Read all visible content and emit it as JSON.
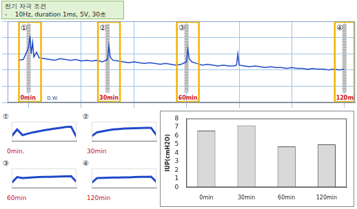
{
  "header": {
    "title": "전기 자극 조건",
    "text": "-    10Hz, duration 1ms, 5V, 30초"
  },
  "chart_data": [
    {
      "type": "line",
      "x": [
        -4,
        -2,
        0,
        0.5,
        1,
        1.5,
        2,
        3,
        4,
        6,
        8,
        10,
        12,
        14,
        16,
        18,
        20,
        22,
        24,
        26,
        28,
        30,
        30.5,
        31,
        32,
        34,
        36,
        38,
        40,
        42,
        44,
        46,
        48,
        50,
        52,
        54,
        56,
        58,
        60,
        60.5,
        61,
        62,
        64,
        66,
        68,
        70,
        72,
        74,
        76,
        78,
        79,
        79.5,
        80,
        82,
        84,
        86,
        88,
        90,
        92,
        94,
        96,
        98,
        100,
        102,
        104,
        106,
        108,
        110,
        112,
        114,
        116,
        118,
        120
      ],
      "values": [
        5.2,
        5.3,
        6.8,
        8.2,
        6.0,
        7.4,
        5.6,
        6.2,
        5.5,
        5.4,
        5.3,
        5.2,
        5.4,
        5.3,
        5.2,
        5.3,
        5.1,
        5.2,
        5.1,
        5.2,
        5.0,
        5.3,
        7.0,
        5.6,
        5.2,
        5.1,
        5.0,
        4.9,
        5.0,
        4.9,
        4.8,
        4.9,
        4.8,
        4.7,
        4.8,
        4.7,
        4.6,
        4.7,
        5.0,
        6.6,
        5.4,
        5.0,
        4.8,
        4.6,
        4.7,
        4.6,
        4.5,
        4.6,
        4.5,
        4.5,
        4.6,
        6.0,
        4.6,
        4.5,
        4.4,
        4.5,
        4.4,
        4.3,
        4.4,
        4.3,
        4.3,
        4.2,
        4.3,
        4.2,
        4.2,
        4.1,
        4.2,
        4.1,
        4.1,
        4.0,
        4.1,
        4.0,
        4.1
      ],
      "color": "#1f49c8",
      "xlim": [
        -8,
        124
      ],
      "xticks": [
        0,
        20,
        40,
        60,
        80,
        100,
        120
      ],
      "ylim": [
        0,
        10
      ],
      "yticks": [
        0,
        2,
        4,
        6,
        8,
        10
      ],
      "grid": true,
      "tick_labels": false,
      "annotations": [
        {
          "x": 0,
          "marker": "①",
          "text": "0min"
        },
        {
          "x": 7,
          "text": "D.W."
        },
        {
          "x": 30,
          "marker": "②",
          "text": "30min"
        },
        {
          "x": 60,
          "marker": "③",
          "text": "60min"
        },
        {
          "x": 120,
          "marker": "④",
          "text": "120min"
        }
      ]
    },
    {
      "type": "line",
      "title": "①",
      "subtitle": "0min.",
      "x": [
        0,
        1,
        2,
        3,
        4,
        5,
        6,
        7,
        8,
        9,
        10,
        11,
        12
      ],
      "values": [
        2.5,
        6,
        3,
        3.8,
        4.5,
        5,
        5.5,
        6,
        6.4,
        6.8,
        7.2,
        7.4,
        2
      ],
      "color": "#1f49c8",
      "xlim": [
        0,
        12
      ],
      "ylim": [
        0,
        10
      ],
      "grid": false,
      "tick_labels": false
    },
    {
      "type": "line",
      "title": "②",
      "subtitle": "30min",
      "x": [
        0,
        1,
        2,
        3,
        4,
        5,
        6,
        7,
        8,
        9,
        10,
        11,
        12
      ],
      "values": [
        2.5,
        4.5,
        5,
        5.5,
        6,
        6.2,
        6.4,
        6.5,
        6.6,
        6.7,
        6.8,
        6.8,
        3
      ],
      "color": "#1f49c8",
      "xlim": [
        0,
        12
      ],
      "ylim": [
        0,
        10
      ],
      "grid": false,
      "tick_labels": false
    },
    {
      "type": "line",
      "title": "③",
      "subtitle": "60min",
      "x": [
        0,
        1,
        2,
        3,
        4,
        5,
        6,
        7,
        8,
        9,
        10,
        11,
        12
      ],
      "values": [
        2.5,
        5.5,
        5,
        5.2,
        5.4,
        5.5,
        5.6,
        5.6,
        5.7,
        5.8,
        5.9,
        6,
        3
      ],
      "color": "#1f49c8",
      "xlim": [
        0,
        12
      ],
      "ylim": [
        0,
        10
      ],
      "grid": false,
      "tick_labels": false
    },
    {
      "type": "line",
      "title": "④",
      "subtitle": "120min",
      "x": [
        0,
        1,
        2,
        3,
        4,
        5,
        6,
        7,
        8,
        9,
        10,
        11,
        12
      ],
      "values": [
        2.5,
        5,
        5.1,
        5.2,
        5.3,
        5.3,
        5.4,
        5.4,
        5.5,
        5.6,
        5.6,
        5.7,
        3
      ],
      "color": "#1f49c8",
      "xlim": [
        0,
        12
      ],
      "ylim": [
        0,
        10
      ],
      "grid": false,
      "tick_labels": false
    },
    {
      "type": "bar",
      "ylabel": "IUP(cmH2O)",
      "categories": [
        "0min",
        "30min",
        "60min",
        "120min"
      ],
      "values": [
        6.6,
        7.2,
        4.75,
        5.0
      ],
      "color": "#d9d9d9",
      "ylim": [
        0,
        8
      ],
      "yticks": [
        0,
        1,
        2,
        3,
        4,
        5,
        6,
        7,
        8
      ],
      "grid": false
    }
  ]
}
